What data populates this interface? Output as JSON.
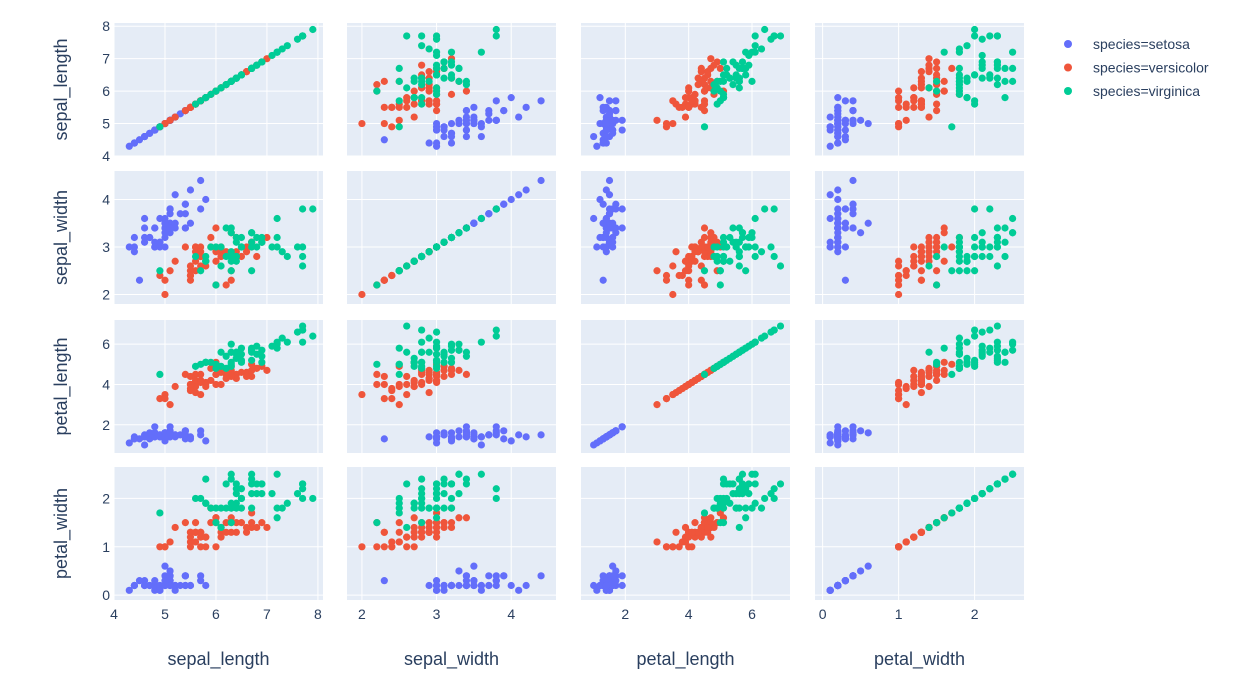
{
  "chart_data": {
    "type": "scatter",
    "subtype": "scatter-matrix",
    "dimensions": [
      "sepal_length",
      "sepal_width",
      "petal_length",
      "petal_width"
    ],
    "axis_ranges": {
      "sepal_length": [
        4.0,
        8.1
      ],
      "sepal_width": [
        1.8,
        4.6
      ],
      "petal_length": [
        0.6,
        7.2
      ],
      "petal_width": [
        -0.1,
        2.65
      ]
    },
    "ticks": {
      "sepal_length": [
        4,
        5,
        6,
        7,
        8
      ],
      "sepal_width": [
        2,
        3,
        4
      ],
      "petal_length": [
        2,
        4,
        6
      ],
      "petal_width": [
        0,
        1,
        2
      ]
    },
    "y_ticks": {
      "sepal_length": [
        4,
        5,
        6,
        7,
        8
      ],
      "sepal_width": [
        2,
        3,
        4
      ],
      "petal_length": [
        2,
        4,
        6
      ],
      "petal_width": [
        0,
        1,
        2
      ]
    },
    "grid": true,
    "legend_position": "top-right",
    "legend_items": [
      "species=setosa",
      "species=versicolor",
      "species=virginica"
    ],
    "colors": {
      "setosa": "#636efa",
      "versicolor": "#ef553b",
      "virginica": "#00cc96",
      "plot_bg": "#e5ecf6",
      "grid": "#ffffff",
      "text": "#2a3f5f"
    },
    "series": [
      {
        "name": "species=setosa",
        "color": "#636efa",
        "points": [
          [
            5.1,
            3.5,
            1.4,
            0.2
          ],
          [
            4.9,
            3.0,
            1.4,
            0.2
          ],
          [
            4.7,
            3.2,
            1.3,
            0.2
          ],
          [
            4.6,
            3.1,
            1.5,
            0.2
          ],
          [
            5.0,
            3.6,
            1.4,
            0.2
          ],
          [
            5.4,
            3.9,
            1.7,
            0.4
          ],
          [
            4.6,
            3.4,
            1.4,
            0.3
          ],
          [
            5.0,
            3.4,
            1.5,
            0.2
          ],
          [
            4.4,
            2.9,
            1.4,
            0.2
          ],
          [
            4.9,
            3.1,
            1.5,
            0.1
          ],
          [
            5.4,
            3.7,
            1.5,
            0.2
          ],
          [
            4.8,
            3.4,
            1.6,
            0.2
          ],
          [
            4.8,
            3.0,
            1.4,
            0.1
          ],
          [
            4.3,
            3.0,
            1.1,
            0.1
          ],
          [
            5.8,
            4.0,
            1.2,
            0.2
          ],
          [
            5.7,
            4.4,
            1.5,
            0.4
          ],
          [
            5.4,
            3.9,
            1.3,
            0.4
          ],
          [
            5.1,
            3.5,
            1.4,
            0.3
          ],
          [
            5.7,
            3.8,
            1.7,
            0.3
          ],
          [
            5.1,
            3.8,
            1.5,
            0.3
          ],
          [
            5.4,
            3.4,
            1.7,
            0.2
          ],
          [
            5.1,
            3.7,
            1.5,
            0.4
          ],
          [
            4.6,
            3.6,
            1.0,
            0.2
          ],
          [
            5.1,
            3.3,
            1.7,
            0.5
          ],
          [
            4.8,
            3.4,
            1.9,
            0.2
          ],
          [
            5.0,
            3.0,
            1.6,
            0.2
          ],
          [
            5.0,
            3.4,
            1.6,
            0.4
          ],
          [
            5.2,
            3.5,
            1.5,
            0.2
          ],
          [
            5.2,
            3.4,
            1.4,
            0.2
          ],
          [
            4.7,
            3.2,
            1.6,
            0.2
          ],
          [
            4.8,
            3.1,
            1.6,
            0.2
          ],
          [
            5.4,
            3.4,
            1.5,
            0.4
          ],
          [
            5.2,
            4.1,
            1.5,
            0.1
          ],
          [
            5.5,
            4.2,
            1.4,
            0.2
          ],
          [
            4.9,
            3.1,
            1.5,
            0.2
          ],
          [
            5.0,
            3.2,
            1.2,
            0.2
          ],
          [
            5.5,
            3.5,
            1.3,
            0.2
          ],
          [
            4.9,
            3.6,
            1.4,
            0.1
          ],
          [
            4.4,
            3.0,
            1.3,
            0.2
          ],
          [
            5.1,
            3.4,
            1.5,
            0.2
          ],
          [
            5.0,
            3.5,
            1.3,
            0.3
          ],
          [
            4.5,
            2.3,
            1.3,
            0.3
          ],
          [
            4.4,
            3.2,
            1.3,
            0.2
          ],
          [
            5.0,
            3.5,
            1.6,
            0.6
          ],
          [
            5.1,
            3.8,
            1.9,
            0.4
          ],
          [
            4.8,
            3.0,
            1.4,
            0.3
          ],
          [
            5.1,
            3.8,
            1.6,
            0.2
          ],
          [
            4.6,
            3.2,
            1.4,
            0.2
          ],
          [
            5.3,
            3.7,
            1.5,
            0.2
          ],
          [
            5.0,
            3.3,
            1.4,
            0.2
          ]
        ]
      },
      {
        "name": "species=versicolor",
        "color": "#ef553b",
        "points": [
          [
            7.0,
            3.2,
            4.7,
            1.4
          ],
          [
            6.4,
            3.2,
            4.5,
            1.5
          ],
          [
            6.9,
            3.1,
            4.9,
            1.5
          ],
          [
            5.5,
            2.3,
            4.0,
            1.3
          ],
          [
            6.5,
            2.8,
            4.6,
            1.5
          ],
          [
            5.7,
            2.8,
            4.5,
            1.3
          ],
          [
            6.3,
            3.3,
            4.7,
            1.6
          ],
          [
            4.9,
            2.4,
            3.3,
            1.0
          ],
          [
            6.6,
            2.9,
            4.6,
            1.3
          ],
          [
            5.2,
            2.7,
            3.9,
            1.4
          ],
          [
            5.0,
            2.0,
            3.5,
            1.0
          ],
          [
            5.9,
            3.0,
            4.2,
            1.5
          ],
          [
            6.0,
            2.2,
            4.0,
            1.0
          ],
          [
            6.1,
            2.9,
            4.7,
            1.4
          ],
          [
            5.6,
            2.9,
            3.6,
            1.3
          ],
          [
            6.7,
            3.1,
            4.4,
            1.4
          ],
          [
            5.6,
            3.0,
            4.5,
            1.5
          ],
          [
            5.8,
            2.7,
            4.1,
            1.0
          ],
          [
            6.2,
            2.2,
            4.5,
            1.5
          ],
          [
            5.6,
            2.5,
            3.9,
            1.1
          ],
          [
            5.9,
            3.2,
            4.8,
            1.8
          ],
          [
            6.1,
            2.8,
            4.0,
            1.3
          ],
          [
            6.3,
            2.5,
            4.9,
            1.5
          ],
          [
            6.1,
            2.8,
            4.7,
            1.2
          ],
          [
            6.4,
            2.9,
            4.3,
            1.3
          ],
          [
            6.6,
            3.0,
            4.4,
            1.4
          ],
          [
            6.8,
            2.8,
            4.8,
            1.4
          ],
          [
            6.7,
            3.0,
            5.0,
            1.7
          ],
          [
            6.0,
            2.9,
            4.5,
            1.5
          ],
          [
            5.7,
            2.6,
            3.5,
            1.0
          ],
          [
            5.5,
            2.4,
            3.8,
            1.1
          ],
          [
            5.5,
            2.4,
            3.7,
            1.0
          ],
          [
            5.8,
            2.7,
            3.9,
            1.2
          ],
          [
            6.0,
            2.7,
            5.1,
            1.6
          ],
          [
            5.4,
            3.0,
            4.5,
            1.5
          ],
          [
            6.0,
            3.4,
            4.5,
            1.6
          ],
          [
            6.7,
            3.1,
            4.7,
            1.5
          ],
          [
            6.3,
            2.3,
            4.4,
            1.3
          ],
          [
            5.6,
            3.0,
            4.1,
            1.3
          ],
          [
            5.5,
            2.5,
            4.0,
            1.3
          ],
          [
            5.5,
            2.6,
            4.4,
            1.2
          ],
          [
            6.1,
            3.0,
            4.6,
            1.4
          ],
          [
            5.8,
            2.6,
            4.0,
            1.2
          ],
          [
            5.0,
            2.3,
            3.3,
            1.0
          ],
          [
            5.6,
            2.7,
            4.2,
            1.3
          ],
          [
            5.7,
            3.0,
            4.2,
            1.2
          ],
          [
            5.7,
            2.9,
            4.2,
            1.3
          ],
          [
            6.2,
            2.9,
            4.3,
            1.3
          ],
          [
            5.1,
            2.5,
            3.0,
            1.1
          ],
          [
            5.7,
            2.8,
            4.1,
            1.3
          ]
        ]
      },
      {
        "name": "species=virginica",
        "color": "#00cc96",
        "points": [
          [
            6.3,
            3.3,
            6.0,
            2.5
          ],
          [
            5.8,
            2.7,
            5.1,
            1.9
          ],
          [
            7.1,
            3.0,
            5.9,
            2.1
          ],
          [
            6.3,
            2.9,
            5.6,
            1.8
          ],
          [
            6.5,
            3.0,
            5.8,
            2.2
          ],
          [
            7.6,
            3.0,
            6.6,
            2.1
          ],
          [
            4.9,
            2.5,
            4.5,
            1.7
          ],
          [
            7.3,
            2.9,
            6.3,
            1.8
          ],
          [
            6.7,
            2.5,
            5.8,
            1.8
          ],
          [
            7.2,
            3.6,
            6.1,
            2.5
          ],
          [
            6.5,
            3.2,
            5.1,
            2.0
          ],
          [
            6.4,
            2.7,
            5.3,
            1.9
          ],
          [
            6.8,
            3.0,
            5.5,
            2.1
          ],
          [
            5.7,
            2.5,
            5.0,
            2.0
          ],
          [
            5.8,
            2.8,
            5.1,
            2.4
          ],
          [
            6.4,
            3.2,
            5.3,
            2.3
          ],
          [
            6.5,
            3.0,
            5.5,
            1.8
          ],
          [
            7.7,
            3.8,
            6.7,
            2.2
          ],
          [
            7.7,
            2.6,
            6.9,
            2.3
          ],
          [
            6.0,
            2.2,
            5.0,
            1.5
          ],
          [
            6.9,
            3.2,
            5.7,
            2.3
          ],
          [
            5.6,
            2.8,
            4.9,
            2.0
          ],
          [
            7.7,
            2.8,
            6.7,
            2.0
          ],
          [
            6.3,
            2.7,
            4.9,
            1.8
          ],
          [
            6.7,
            3.3,
            5.7,
            2.1
          ],
          [
            7.2,
            3.2,
            6.0,
            1.8
          ],
          [
            6.2,
            2.8,
            4.8,
            1.8
          ],
          [
            6.1,
            3.0,
            4.9,
            1.8
          ],
          [
            6.4,
            2.8,
            5.6,
            2.1
          ],
          [
            7.2,
            3.0,
            5.8,
            1.6
          ],
          [
            7.4,
            2.8,
            6.1,
            1.9
          ],
          [
            7.9,
            3.8,
            6.4,
            2.0
          ],
          [
            6.4,
            2.8,
            5.6,
            2.2
          ],
          [
            6.3,
            2.8,
            5.1,
            1.5
          ],
          [
            6.1,
            2.6,
            5.6,
            1.4
          ],
          [
            7.7,
            3.0,
            6.1,
            2.3
          ],
          [
            6.3,
            3.4,
            5.6,
            2.4
          ],
          [
            6.4,
            3.1,
            5.5,
            1.8
          ],
          [
            6.0,
            3.0,
            4.8,
            1.8
          ],
          [
            6.9,
            3.1,
            5.4,
            2.1
          ],
          [
            6.7,
            3.1,
            5.6,
            2.4
          ],
          [
            6.9,
            3.1,
            5.1,
            2.3
          ],
          [
            5.8,
            2.7,
            5.1,
            1.9
          ],
          [
            6.8,
            3.2,
            5.9,
            2.3
          ],
          [
            6.7,
            3.3,
            5.7,
            2.5
          ],
          [
            6.7,
            3.0,
            5.2,
            2.3
          ],
          [
            6.3,
            2.5,
            5.0,
            1.9
          ],
          [
            6.5,
            3.0,
            5.2,
            2.0
          ],
          [
            6.2,
            3.4,
            5.4,
            2.3
          ],
          [
            5.9,
            3.0,
            5.1,
            1.8
          ]
        ]
      }
    ]
  }
}
